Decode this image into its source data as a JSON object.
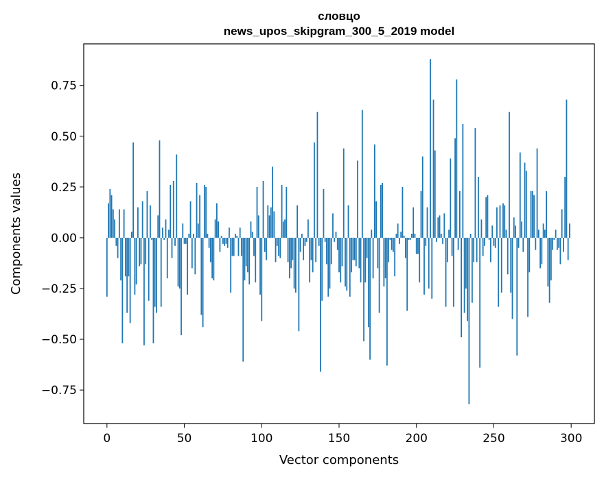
{
  "chart_data": {
    "type": "bar",
    "title_line1": "словцо",
    "title_line2": "news_upos_skipgram_300_5_2019 model",
    "xlabel": "Vector components",
    "ylabel": "Components values",
    "xlim": [
      -15,
      315
    ],
    "ylim": [
      -0.915,
      0.955
    ],
    "xticks": [
      0,
      50,
      100,
      150,
      200,
      250,
      300
    ],
    "xtick_labels": [
      "0",
      "50",
      "100",
      "150",
      "200",
      "250",
      "300"
    ],
    "yticks": [
      -0.75,
      -0.5,
      -0.25,
      0.0,
      0.25,
      0.5,
      0.75
    ],
    "ytick_labels": [
      "−0.75",
      "−0.50",
      "−0.25",
      "0.00",
      "0.25",
      "0.50",
      "0.75"
    ],
    "bar_color": "#1f77b4",
    "values": [
      -0.29,
      0.17,
      0.24,
      0.21,
      0.14,
      0.09,
      -0.04,
      -0.1,
      0.14,
      -0.21,
      -0.52,
      0.14,
      -0.19,
      -0.37,
      -0.19,
      -0.42,
      0.03,
      0.47,
      -0.28,
      -0.23,
      0.15,
      -0.14,
      -0.13,
      0.18,
      -0.53,
      -0.13,
      0.23,
      -0.31,
      0.16,
      -0.01,
      -0.52,
      -0.34,
      -0.37,
      0.11,
      0.48,
      -0.34,
      0.05,
      -0.01,
      0.09,
      -0.2,
      0.04,
      0.26,
      -0.1,
      0.28,
      -0.04,
      0.41,
      -0.24,
      -0.25,
      -0.48,
      0.07,
      -0.03,
      -0.03,
      -0.28,
      0.02,
      0.18,
      -0.15,
      0.02,
      -0.18,
      0.27,
      0.07,
      0.21,
      -0.38,
      -0.44,
      0.26,
      0.25,
      0.02,
      -0.05,
      -0.12,
      -0.2,
      -0.21,
      0.09,
      0.17,
      0.08,
      -0.07,
      0.01,
      -0.03,
      -0.04,
      -0.03,
      -0.05,
      0.05,
      -0.27,
      -0.09,
      -0.09,
      0.02,
      0.01,
      -0.09,
      0.05,
      -0.09,
      -0.61,
      -0.21,
      -0.14,
      -0.17,
      -0.23,
      0.08,
      0.03,
      -0.09,
      -0.22,
      0.25,
      0.11,
      -0.28,
      -0.41,
      0.28,
      -0.07,
      -0.11,
      0.16,
      0.11,
      0.15,
      0.35,
      0.13,
      -0.12,
      -0.04,
      -0.09,
      -0.1,
      0.26,
      0.08,
      0.09,
      0.25,
      -0.12,
      -0.2,
      -0.15,
      -0.11,
      -0.25,
      -0.27,
      0.16,
      -0.46,
      -0.07,
      0.02,
      -0.11,
      -0.04,
      -0.02,
      0.09,
      -0.22,
      -0.11,
      -0.17,
      0.47,
      -0.12,
      0.62,
      -0.04,
      -0.66,
      -0.31,
      0.24,
      -0.02,
      -0.13,
      -0.29,
      -0.25,
      -0.13,
      0.12,
      -0.02,
      0.03,
      -0.06,
      -0.17,
      -0.22,
      -0.14,
      0.44,
      -0.24,
      -0.26,
      0.16,
      -0.29,
      -0.17,
      -0.11,
      -0.11,
      -0.14,
      0.38,
      -0.15,
      -0.22,
      0.63,
      -0.51,
      -0.22,
      -0.1,
      -0.44,
      -0.6,
      0.04,
      -0.2,
      0.46,
      0.18,
      -0.15,
      -0.37,
      0.26,
      0.27,
      -0.24,
      -0.2,
      -0.63,
      -0.12,
      -0.01,
      -0.06,
      -0.07,
      -0.19,
      0.02,
      0.07,
      -0.03,
      0.03,
      0.25,
      0.01,
      -0.1,
      -0.36,
      -0.01,
      -0.01,
      0.02,
      0.15,
      0.02,
      -0.08,
      -0.08,
      -0.22,
      0.23,
      0.4,
      -0.28,
      -0.04,
      0.15,
      -0.25,
      0.88,
      -0.3,
      0.68,
      0.43,
      -0.02,
      0.1,
      0.11,
      0.02,
      -0.03,
      0.12,
      -0.34,
      -0.12,
      0.04,
      0.39,
      -0.09,
      -0.34,
      0.49,
      0.78,
      -0.06,
      0.23,
      -0.49,
      0.56,
      -0.37,
      -0.25,
      -0.41,
      -0.82,
      0.02,
      -0.32,
      -0.12,
      0.54,
      -0.12,
      0.3,
      -0.64,
      0.09,
      -0.09,
      -0.04,
      0.2,
      0.21,
      -0.01,
      -0.12,
      0.06,
      -0.04,
      -0.05,
      0.15,
      -0.34,
      0.16,
      -0.27,
      0.17,
      0.16,
      0.04,
      -0.18,
      0.62,
      -0.27,
      -0.4,
      0.1,
      0.06,
      -0.58,
      -0.05,
      0.42,
      0.08,
      -0.07,
      0.37,
      0.33,
      -0.39,
      -0.17,
      0.23,
      0.23,
      0.21,
      -0.06,
      0.44,
      0.04,
      -0.15,
      -0.13,
      0.07,
      0.04,
      0.23,
      -0.24,
      -0.32,
      -0.21,
      -0.06,
      -0.01,
      0.04,
      -0.06,
      -0.05,
      -0.13,
      0.14,
      -0.07,
      0.3,
      0.68,
      -0.11,
      0.07
    ]
  }
}
